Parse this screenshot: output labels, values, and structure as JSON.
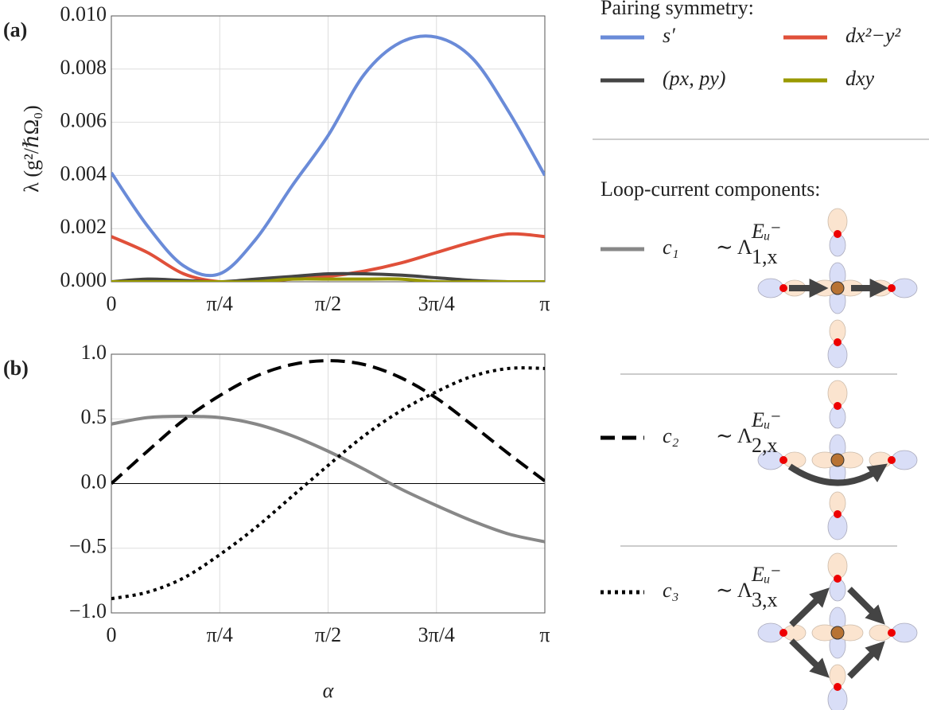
{
  "chart_data": [
    {
      "type": "line",
      "panel_label": "(a)",
      "ylabel": "λ (g²/ℏΩ₀)",
      "legend_title": "Pairing symmetry:",
      "x": [
        0,
        0.2618,
        0.5236,
        0.7854,
        1.0472,
        1.309,
        1.5708,
        1.8326,
        2.0944,
        2.3562,
        2.618,
        2.8798,
        3.1416
      ],
      "xlim": [
        0,
        3.1416
      ],
      "xticks": [
        0,
        {
          "value": 0.7854,
          "label": "π/4"
        },
        {
          "value": 1.5708,
          "label": "π/2"
        },
        {
          "value": 2.3562,
          "label": "3π/4"
        },
        {
          "value": 3.1416,
          "label": "π"
        }
      ],
      "ylim": [
        0,
        0.01
      ],
      "yticks": [
        {
          "value": 0,
          "label": "0.000"
        },
        {
          "value": 0.002,
          "label": "0.002"
        },
        {
          "value": 0.004,
          "label": "0.004"
        },
        {
          "value": 0.006,
          "label": "0.006"
        },
        {
          "value": 0.008,
          "label": "0.008"
        },
        {
          "value": 0.01,
          "label": "0.010"
        }
      ],
      "grid": true,
      "zero_line": false,
      "series": [
        {
          "name": "s′",
          "color": "#6a8bd8",
          "dash": "solid",
          "values": [
            0.0041,
            0.0021,
            0.0006,
            0.0003,
            0.0016,
            0.0036,
            0.0055,
            0.0078,
            0.009,
            0.0092,
            0.0084,
            0.0064,
            0.004
          ]
        },
        {
          "name": "dx²−y²",
          "color": "#e0503a",
          "dash": "solid",
          "values": [
            0.0017,
            0.0011,
            0.0003,
            0,
            0,
            0.0001,
            0.0002,
            0.0004,
            0.0007,
            0.0011,
            0.0015,
            0.0018,
            0.0017
          ]
        },
        {
          "name": "(px, py)",
          "color": "#444444",
          "dash": "solid",
          "values": [
            0,
            0.0001,
            5e-05,
            0,
            0.0001,
            0.0002,
            0.0003,
            0.0003,
            0.00025,
            0.00015,
            5e-05,
            0,
            0
          ]
        },
        {
          "name": "dxy",
          "color": "#999900",
          "dash": "solid",
          "values": [
            0,
            0,
            0,
            0,
            0,
            0.0001,
            0.0001,
            0.0001,
            0.0001,
            0,
            0,
            0,
            0
          ]
        }
      ]
    },
    {
      "type": "line",
      "panel_label": "(b)",
      "xlabel": "α",
      "legend_title": "Loop-current components:",
      "x": [
        0,
        0.2618,
        0.5236,
        0.7854,
        1.0472,
        1.309,
        1.5708,
        1.8326,
        2.0944,
        2.3562,
        2.618,
        2.8798,
        3.1416
      ],
      "xlim": [
        0,
        3.1416
      ],
      "xticks": [
        0,
        {
          "value": 0.7854,
          "label": "π/4"
        },
        {
          "value": 1.5708,
          "label": "π/2"
        },
        {
          "value": 2.3562,
          "label": "3π/4"
        },
        {
          "value": 3.1416,
          "label": "π"
        }
      ],
      "ylim": [
        -1,
        1
      ],
      "yticks": [
        {
          "value": -1,
          "label": "−1.0"
        },
        {
          "value": -0.5,
          "label": "−0.5"
        },
        {
          "value": 0,
          "label": "0.0"
        },
        {
          "value": 0.5,
          "label": "0.5"
        },
        {
          "value": 1,
          "label": "1.0"
        }
      ],
      "grid": true,
      "zero_line": true,
      "series": [
        {
          "name": "c₁",
          "operator": "∼ Λ",
          "sup": "Eᵤ⁻",
          "sub": "1,x",
          "color": "#888888",
          "dash": "solid",
          "values": [
            0.46,
            0.51,
            0.52,
            0.51,
            0.46,
            0.37,
            0.25,
            0.11,
            -0.04,
            -0.17,
            -0.29,
            -0.39,
            -0.45
          ]
        },
        {
          "name": "c₂",
          "operator": "∼ Λ",
          "sup": "Eᵤ⁻",
          "sub": "2,x",
          "color": "#000000",
          "dash": "dashed",
          "values": [
            0,
            0.25,
            0.49,
            0.68,
            0.83,
            0.92,
            0.95,
            0.92,
            0.82,
            0.66,
            0.45,
            0.23,
            0.02
          ]
        },
        {
          "name": "c₃",
          "operator": "∼ Λ",
          "sup": "Eᵤ⁻",
          "sub": "3,x",
          "color": "#000000",
          "dash": "dotted",
          "values": [
            -0.89,
            -0.84,
            -0.73,
            -0.55,
            -0.34,
            -0.1,
            0.14,
            0.37,
            0.56,
            0.71,
            0.83,
            0.89,
            0.89
          ]
        }
      ]
    }
  ]
}
